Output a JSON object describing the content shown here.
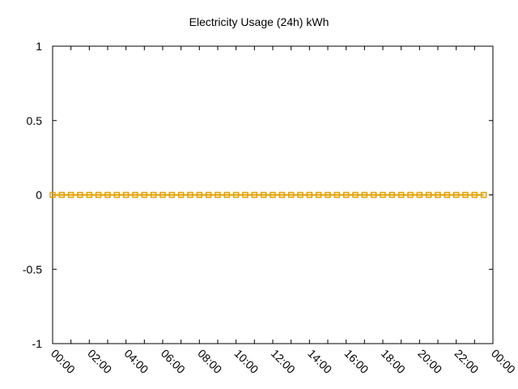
{
  "chart_data": {
    "type": "line",
    "title": "Electricity Usage (24h) kWh",
    "xlabel": "",
    "ylabel": "",
    "ylim": [
      -1,
      1
    ],
    "yticks": [
      "1",
      "0.5",
      "0",
      "-0.5",
      "-1"
    ],
    "ytick_values": [
      1,
      0.5,
      0,
      -0.5,
      -1
    ],
    "xtick_labels": [
      "00:00",
      "02:00",
      "04:00",
      "06:00",
      "08:00",
      "10:00",
      "12:00",
      "14:00",
      "16:00",
      "18:00",
      "20:00",
      "22:00",
      "00:00"
    ],
    "grid": false,
    "legend": null,
    "series": [
      {
        "name": "Electricity Usage",
        "color": "#e6a000",
        "marker": "square",
        "x": [
          "00:00",
          "00:30",
          "01:00",
          "01:30",
          "02:00",
          "02:30",
          "03:00",
          "03:30",
          "04:00",
          "04:30",
          "05:00",
          "05:30",
          "06:00",
          "06:30",
          "07:00",
          "07:30",
          "08:00",
          "08:30",
          "09:00",
          "09:30",
          "10:00",
          "10:30",
          "11:00",
          "11:30",
          "12:00",
          "12:30",
          "13:00",
          "13:30",
          "14:00",
          "14:30",
          "15:00",
          "15:30",
          "16:00",
          "16:30",
          "17:00",
          "17:30",
          "18:00",
          "18:30",
          "19:00",
          "19:30",
          "20:00",
          "20:30",
          "21:00",
          "21:30",
          "22:00",
          "22:30",
          "23:00",
          "23:30"
        ],
        "values": [
          0,
          0,
          0,
          0,
          0,
          0,
          0,
          0,
          0,
          0,
          0,
          0,
          0,
          0,
          0,
          0,
          0,
          0,
          0,
          0,
          0,
          0,
          0,
          0,
          0,
          0,
          0,
          0,
          0,
          0,
          0,
          0,
          0,
          0,
          0,
          0,
          0,
          0,
          0,
          0,
          0,
          0,
          0,
          0,
          0,
          0,
          0,
          0
        ]
      }
    ]
  }
}
